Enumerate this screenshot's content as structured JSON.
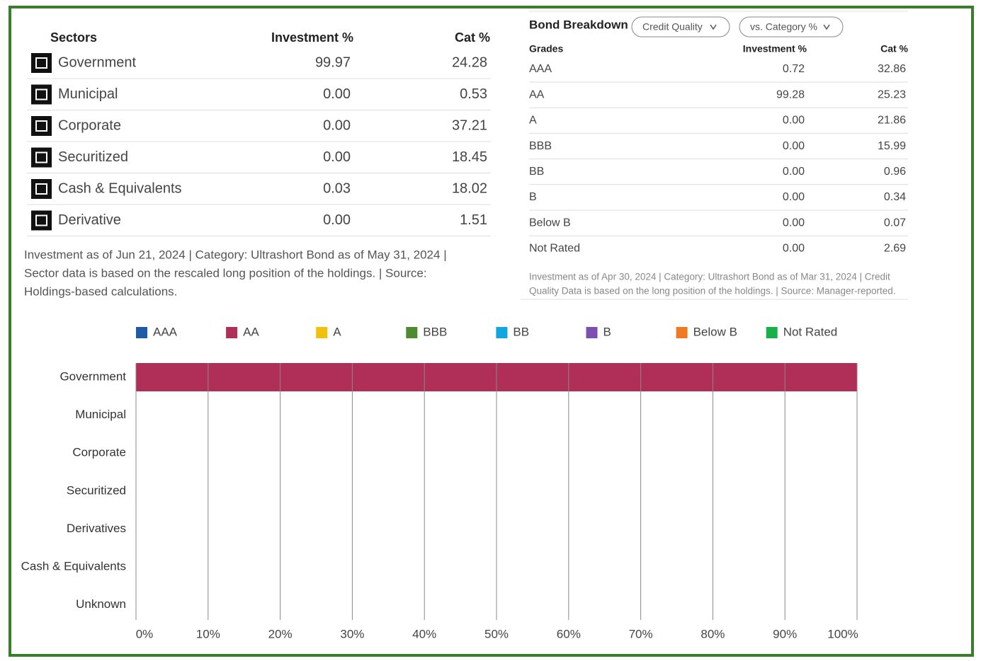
{
  "sectors": {
    "headers": [
      "Sectors",
      "Investment %",
      "Cat %"
    ],
    "rows": [
      [
        "Government",
        "99.97",
        "24.28"
      ],
      [
        "Municipal",
        "0.00",
        "0.53"
      ],
      [
        "Corporate",
        "0.00",
        "37.21"
      ],
      [
        "Securitized",
        "0.00",
        "18.45"
      ],
      [
        "Cash & Equivalents",
        "0.03",
        "18.02"
      ],
      [
        "Derivative",
        "0.00",
        "1.51"
      ]
    ],
    "footnote": [
      "Investment as of Jun 21, 2024 | Category: Ultrashort Bond as of May 31, 2024 |",
      "Sector data is based on the rescaled long position of the holdings. | Source:",
      "Holdings-based calculations."
    ]
  },
  "bond_breakdown": {
    "title": "Bond Breakdown",
    "buttons": [
      "Credit Quality",
      "vs. Category %"
    ],
    "headers": [
      "Grades",
      "Investment %",
      "Cat %"
    ],
    "rows": [
      [
        "AAA",
        "0.72",
        "32.86"
      ],
      [
        "AA",
        "99.28",
        "25.23"
      ],
      [
        "A",
        "0.00",
        "21.86"
      ],
      [
        "BBB",
        "0.00",
        "15.99"
      ],
      [
        "BB",
        "0.00",
        "0.96"
      ],
      [
        "B",
        "0.00",
        "0.34"
      ],
      [
        "Below B",
        "0.00",
        "0.07"
      ],
      [
        "Not Rated",
        "0.00",
        "2.69"
      ]
    ],
    "footnote": [
      "Investment as of Apr 30, 2024 | Category: Ultrashort Bond as of Mar 31, 2024 | Credit",
      "Quality Data is based on the long position of the holdings. | Source: Manager-reported."
    ]
  },
  "chart_data": {
    "type": "stacked_barh",
    "categories": [
      "Government",
      "Municipal",
      "Corporate",
      "Securitized",
      "Derivatives",
      "Cash & Equivalents",
      "Unknown"
    ],
    "series": [
      {
        "name": "AAA",
        "color": "#1f5aa6",
        "values": [
          0,
          0,
          0,
          0,
          0,
          0,
          0
        ]
      },
      {
        "name": "AA",
        "color": "#b02f58",
        "values": [
          100,
          0,
          0,
          0,
          0,
          0,
          0
        ]
      },
      {
        "name": "A",
        "color": "#f2c10f",
        "values": [
          0,
          0,
          0,
          0,
          0,
          0,
          0
        ]
      },
      {
        "name": "BBB",
        "color": "#4e8a2e",
        "values": [
          0,
          0,
          0,
          0,
          0,
          0,
          0
        ]
      },
      {
        "name": "BB",
        "color": "#12a5e0",
        "values": [
          0,
          0,
          0,
          0,
          0,
          0,
          0
        ]
      },
      {
        "name": "B",
        "color": "#7d4fae",
        "values": [
          0,
          0,
          0,
          0,
          0,
          0,
          0
        ]
      },
      {
        "name": "Below B",
        "color": "#f07a24",
        "values": [
          0,
          0,
          0,
          0,
          0,
          0,
          0
        ]
      },
      {
        "name": "Not Rated",
        "color": "#18b04a",
        "values": [
          0,
          0,
          0,
          0,
          0,
          0,
          0
        ]
      }
    ],
    "xlim": [
      0,
      100
    ],
    "xticks": [
      {
        "value": 0,
        "label": "0%"
      },
      {
        "value": 10,
        "label": "10%"
      },
      {
        "value": 20,
        "label": "20%"
      },
      {
        "value": 30,
        "label": "30%"
      },
      {
        "value": 40,
        "label": "40%"
      },
      {
        "value": 50,
        "label": "50%"
      },
      {
        "value": 60,
        "label": "60%"
      },
      {
        "value": 70,
        "label": "70%"
      },
      {
        "value": 80,
        "label": "80%"
      },
      {
        "value": 90,
        "label": "90%"
      },
      {
        "value": 100,
        "label": "100%"
      }
    ],
    "grid": true
  }
}
